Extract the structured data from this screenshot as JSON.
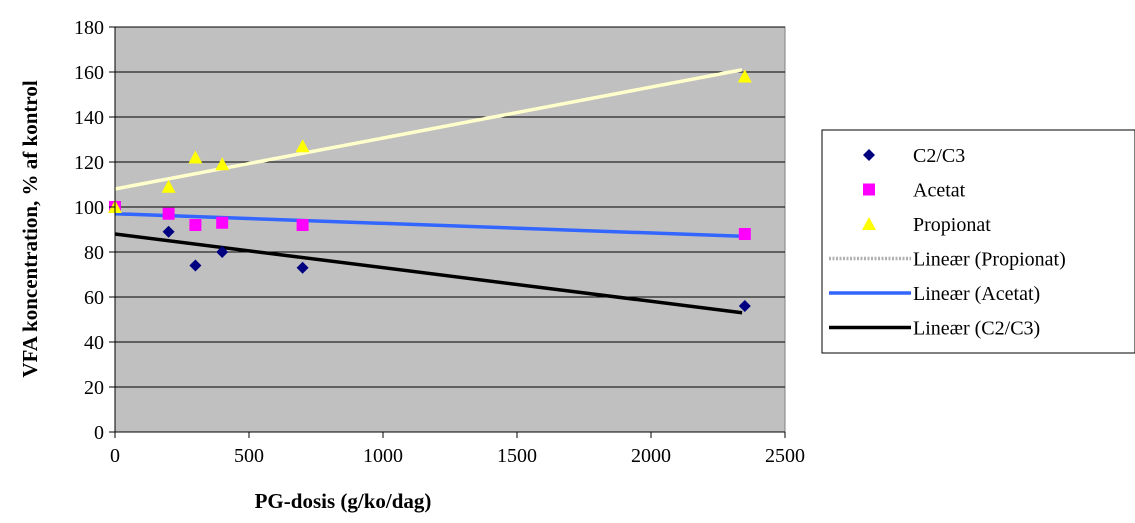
{
  "chart_data": {
    "type": "scatter",
    "xlabel": "PG-dosis (g/ko/dag)",
    "ylabel": "VFA koncentration, % af kontrol",
    "xlim": [
      0,
      2500
    ],
    "ylim": [
      0,
      180
    ],
    "x_ticks": [
      0,
      500,
      1000,
      1500,
      2000,
      2500
    ],
    "y_ticks": [
      0,
      20,
      40,
      60,
      80,
      100,
      120,
      140,
      160,
      180
    ],
    "grid": true,
    "plot_background": "#c0c0c0",
    "legend_placement": "right",
    "series": [
      {
        "name": "C2/C3",
        "marker": "diamond",
        "color": "#000080",
        "points": [
          [
            0,
            100
          ],
          [
            200,
            89
          ],
          [
            300,
            74
          ],
          [
            400,
            80
          ],
          [
            700,
            73
          ],
          [
            2350,
            56
          ]
        ]
      },
      {
        "name": "Acetat",
        "marker": "square",
        "color": "#ff00ff",
        "points": [
          [
            0,
            100
          ],
          [
            200,
            97
          ],
          [
            300,
            92
          ],
          [
            400,
            93
          ],
          [
            700,
            92
          ],
          [
            2350,
            88
          ]
        ]
      },
      {
        "name": "Propionat",
        "marker": "triangle",
        "color": "#ffff00",
        "points": [
          [
            0,
            100
          ],
          [
            200,
            109
          ],
          [
            300,
            122
          ],
          [
            400,
            119
          ],
          [
            700,
            127
          ],
          [
            2350,
            158
          ]
        ]
      }
    ],
    "trendlines": [
      {
        "name": "Lineær (Propionat)",
        "color": "#ffffcc",
        "legend_style": "dotted",
        "start": [
          0,
          108
        ],
        "end": [
          2340,
          161
        ]
      },
      {
        "name": "Lineær (Acetat)",
        "color": "#3366ff",
        "legend_style": "solid",
        "start": [
          0,
          97
        ],
        "end": [
          2340,
          87
        ]
      },
      {
        "name": "Lineær (C2/C3)",
        "color": "#000000",
        "legend_style": "solid",
        "start": [
          0,
          88
        ],
        "end": [
          2340,
          53
        ]
      }
    ]
  }
}
